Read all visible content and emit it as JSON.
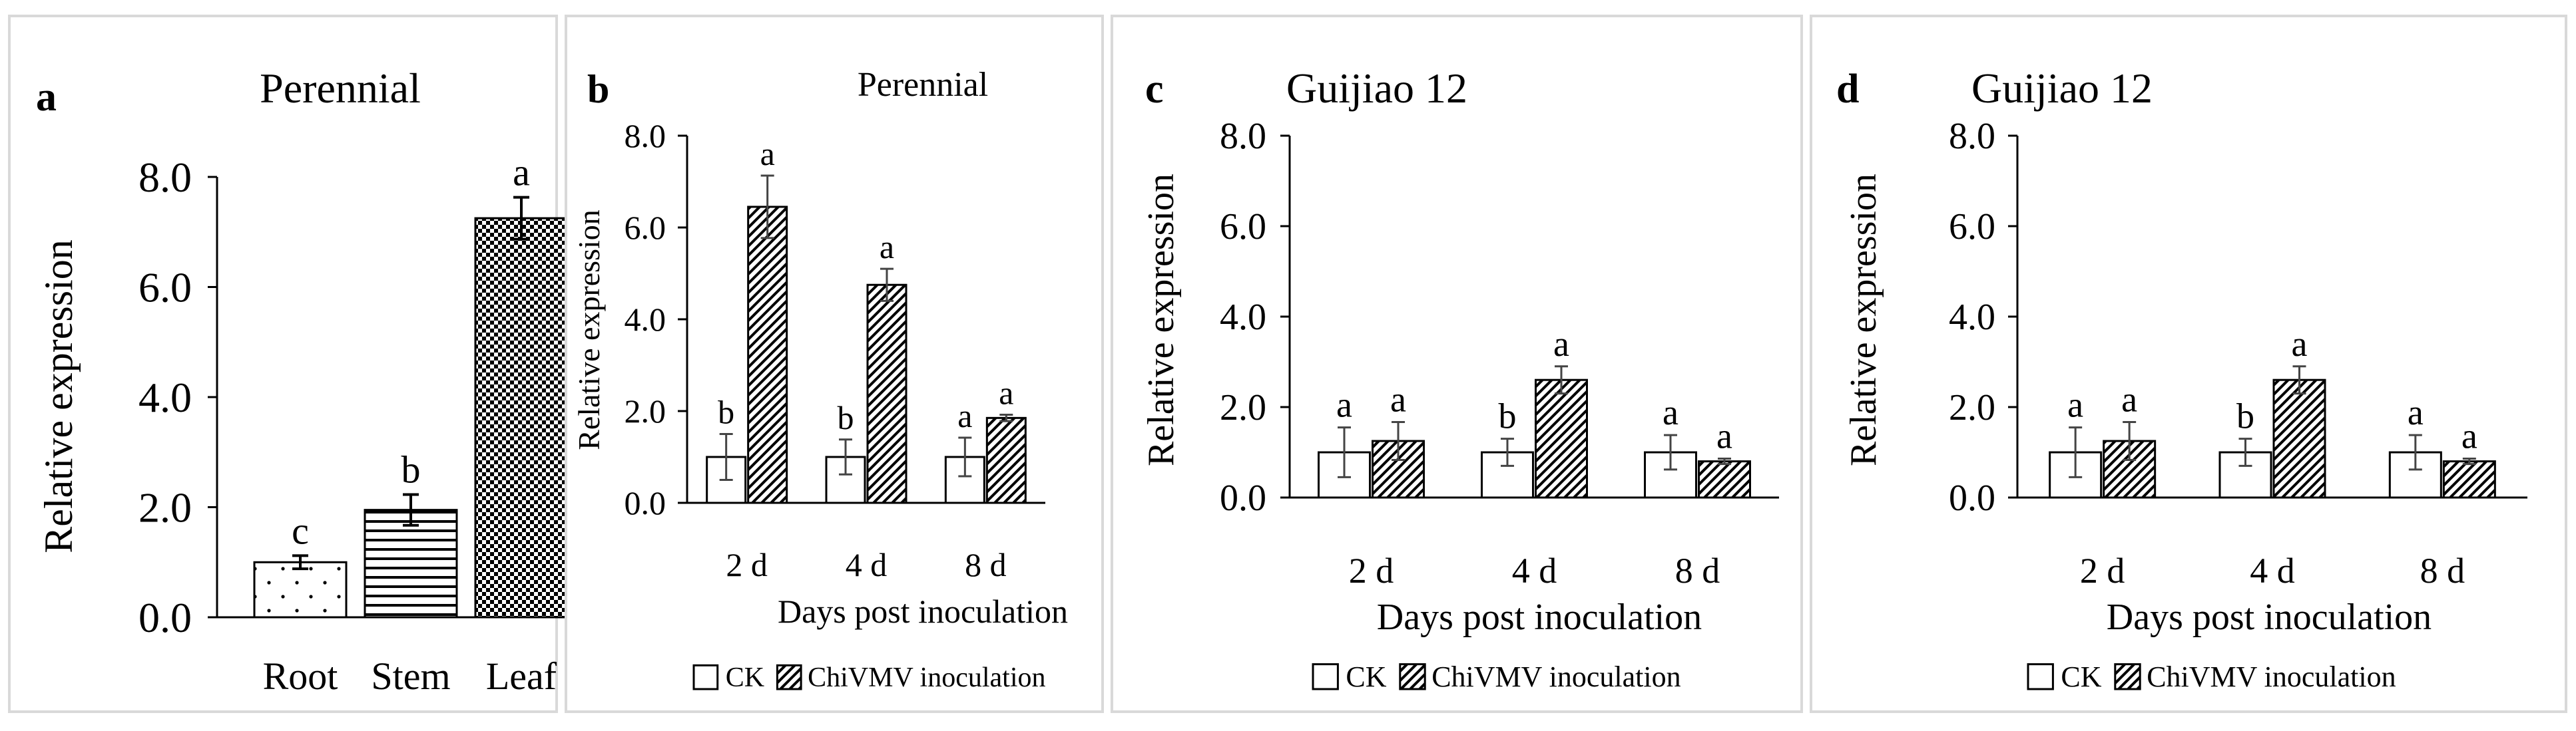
{
  "chart_data": [
    {
      "panel_letter": "a",
      "type": "bar",
      "title": "Perennial",
      "ylabel": "Relative expression",
      "xlabel": "",
      "ylim": [
        0,
        8
      ],
      "yticks": [
        "0.0",
        "2.0",
        "4.0",
        "6.0",
        "8.0"
      ],
      "categories": [
        "Root",
        "Stem",
        "Leaf"
      ],
      "series": [
        {
          "name": "",
          "values": [
            1.0,
            1.95,
            7.25
          ],
          "errors": [
            0.12,
            0.28,
            0.38
          ],
          "letters": [
            "c",
            "b",
            "a"
          ],
          "patterns": [
            "dots",
            "hlines",
            "checker"
          ]
        }
      ],
      "legend": []
    },
    {
      "panel_letter": "b",
      "type": "bar",
      "title": "Perennial",
      "ylabel": "Relative expression",
      "xlabel": "Days post inoculation",
      "ylim": [
        0,
        8
      ],
      "yticks": [
        "0.0",
        "2.0",
        "4.0",
        "6.0",
        "8.0"
      ],
      "categories": [
        "2 d",
        "4 d",
        "8 d"
      ],
      "series": [
        {
          "name": "CK",
          "values": [
            1.0,
            1.0,
            1.0
          ],
          "errors": [
            0.5,
            0.38,
            0.42
          ],
          "letters": [
            "b",
            "b",
            "a"
          ]
        },
        {
          "name": "ChiVMV inoculation",
          "values": [
            6.45,
            4.75,
            1.85
          ],
          "errors": [
            0.68,
            0.35,
            0.07
          ],
          "letters": [
            "a",
            "a",
            "a"
          ]
        }
      ],
      "legend": [
        "CK",
        "ChiVMV inoculation"
      ]
    },
    {
      "panel_letter": "c",
      "type": "bar",
      "title": "Guijiao 12",
      "ylabel": "Relative expression",
      "xlabel": "Days post inoculation",
      "ylim": [
        0,
        8
      ],
      "yticks": [
        "0.0",
        "2.0",
        "4.0",
        "6.0",
        "8.0"
      ],
      "categories": [
        "2 d",
        "4 d",
        "8 d"
      ],
      "series": [
        {
          "name": "CK",
          "values": [
            1.0,
            1.0,
            1.0
          ],
          "errors": [
            0.55,
            0.3,
            0.38
          ],
          "letters": [
            "a",
            "b",
            "a"
          ]
        },
        {
          "name": "ChiVMV inoculation",
          "values": [
            1.25,
            2.6,
            0.8
          ],
          "errors": [
            0.42,
            0.3,
            0.06
          ],
          "letters": [
            "a",
            "a",
            "a"
          ]
        }
      ],
      "legend": [
        "CK",
        "ChiVMV inoculation"
      ]
    },
    {
      "panel_letter": "d",
      "type": "bar",
      "title": "Guijiao 12",
      "ylabel": "Relative expression",
      "xlabel": "Days post inoculation",
      "ylim": [
        0,
        8
      ],
      "yticks": [
        "0.0",
        "2.0",
        "4.0",
        "6.0",
        "8.0"
      ],
      "categories": [
        "2 d",
        "4 d",
        "8 d"
      ],
      "series": [
        {
          "name": "CK",
          "values": [
            1.0,
            1.0,
            1.0
          ],
          "errors": [
            0.55,
            0.3,
            0.38
          ],
          "letters": [
            "a",
            "b",
            "a"
          ]
        },
        {
          "name": "ChiVMV inoculation",
          "values": [
            1.25,
            2.6,
            0.8
          ],
          "errors": [
            0.42,
            0.3,
            0.06
          ],
          "letters": [
            "a",
            "a",
            "a"
          ]
        }
      ],
      "legend": [
        "CK",
        "ChiVMV inoculation"
      ]
    }
  ]
}
